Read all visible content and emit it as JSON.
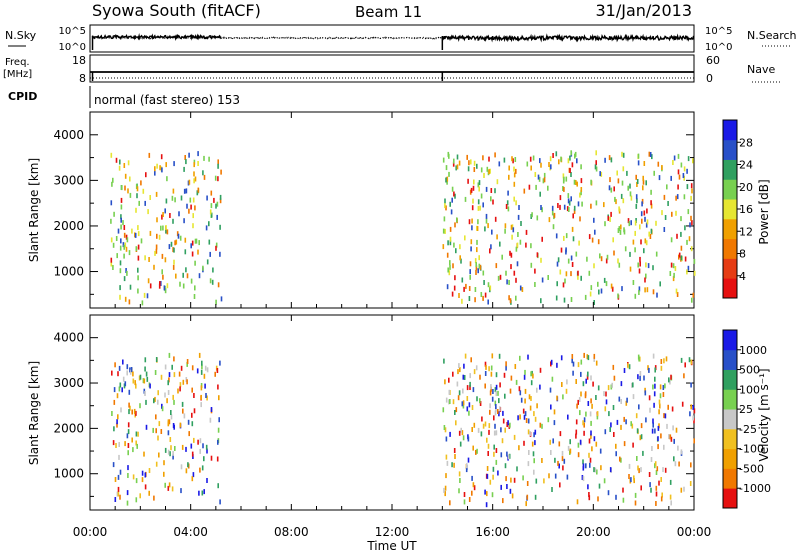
{
  "header": {
    "station": "Syowa South (fitACF)",
    "beam": "Beam 11",
    "date": "31/Jan/2013"
  },
  "strips": {
    "nsky_label": "N.Sky",
    "nsearch_label": "N.Search",
    "noise_ticks": [
      "10^5",
      "10^0"
    ],
    "freq_label": "Freq.",
    "freq_unit": "[MHz]",
    "freq_ticks": [
      "18",
      "8"
    ],
    "nave_label": "Nave",
    "nave_ticks": [
      "60",
      "0"
    ],
    "cpid_label": "CPID",
    "cpid_text": "normal (fast stereo) 153"
  },
  "colorbars": {
    "power": {
      "label": "Power [dB]",
      "ticks": [
        "28",
        "24",
        "20",
        "16",
        "12",
        "8",
        "4"
      ],
      "colors": [
        "#1a1ae6",
        "#2850c8",
        "#30a060",
        "#78d050",
        "#e6e632",
        "#f0a000",
        "#f07800",
        "#e63c14",
        "#e61010"
      ]
    },
    "velocity": {
      "label": "Velocity [m s⁻¹]",
      "ticks": [
        "1000",
        "500",
        "100",
        "25",
        "-25",
        "-100",
        "-500",
        "-1000"
      ],
      "colors": [
        "#1a1ae6",
        "#2850c8",
        "#30a060",
        "#78d050",
        "#c8c8c8",
        "#f0c020",
        "#f0a000",
        "#f07800",
        "#e61010"
      ]
    }
  },
  "chart_data": [
    {
      "type": "scatter",
      "panel": "power",
      "ylabel": "Slant Range [km]",
      "ylim": [
        200,
        4500
      ],
      "yticks": [
        "1000",
        "2000",
        "3000",
        "4000"
      ],
      "xlim": [
        0,
        24
      ],
      "series": [
        {
          "name": "power",
          "x_ranges_hours": [
            [
              0.8,
              5.2
            ],
            [
              14.0,
              24.0
            ]
          ],
          "y_range_km": [
            300,
            3600
          ]
        }
      ]
    },
    {
      "type": "scatter",
      "panel": "velocity",
      "xlabel": "Time UT",
      "ylabel": "Slant Range [km]",
      "ylim": [
        200,
        4500
      ],
      "yticks": [
        "1000",
        "2000",
        "3000",
        "4000"
      ],
      "xlim": [
        0,
        24
      ],
      "xticks": [
        "00:00",
        "04:00",
        "08:00",
        "12:00",
        "16:00",
        "20:00",
        "00:00"
      ],
      "series": [
        {
          "name": "velocity",
          "x_ranges_hours": [
            [
              0.8,
              5.2
            ],
            [
              14.0,
              24.0
            ]
          ],
          "y_range_km": [
            300,
            3600
          ]
        }
      ]
    }
  ]
}
